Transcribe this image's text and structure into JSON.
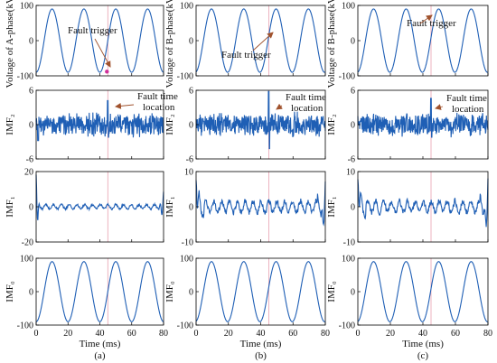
{
  "colors": {
    "signal": "#1f5fb5",
    "marker": "#e8a0b0",
    "arrow": "#a0522d",
    "fault_point": "#d0309a",
    "axis": "#000000"
  },
  "chart_data": [
    {
      "type": "line",
      "column": "a",
      "row": 0,
      "signal": "voltage",
      "ylabel": "Voltage of A-phase(kV)",
      "ylim": [
        -100,
        100
      ],
      "yticks": [
        -100,
        0,
        100
      ],
      "annotation": "Fault trigger",
      "fault_point": true
    },
    {
      "type": "line",
      "column": "a",
      "row": 1,
      "signal": "imf2",
      "ylabel": "IMF₂",
      "ylim": [
        -6,
        6
      ],
      "yticks": [
        -6,
        0,
        6
      ],
      "annotation": "Fault time location"
    },
    {
      "type": "line",
      "column": "a",
      "row": 2,
      "signal": "imf1",
      "ylabel": "IMF₁",
      "ylim": [
        -20,
        20
      ],
      "yticks": [
        -20,
        0,
        20
      ]
    },
    {
      "type": "line",
      "column": "a",
      "row": 3,
      "signal": "imf0",
      "ylabel": "IMF₀",
      "ylim": [
        -100,
        100
      ],
      "yticks": [
        -100,
        0,
        100
      ],
      "xlabel": "Time (ms)",
      "xticks": [
        0,
        20,
        40,
        60,
        80
      ],
      "caption": "(a)"
    },
    {
      "type": "line",
      "column": "b",
      "row": 0,
      "signal": "voltage",
      "ylabel": "Voltage of B-phase(kV)",
      "ylim": [
        -100,
        100
      ],
      "yticks": [
        -100,
        0,
        100
      ],
      "annotation": "Fault trigger"
    },
    {
      "type": "line",
      "column": "b",
      "row": 1,
      "signal": "imf2",
      "ylabel": "IMF₂",
      "ylim": [
        -6,
        6
      ],
      "yticks": [
        -6,
        0,
        6
      ],
      "annotation": "Fault time location"
    },
    {
      "type": "line",
      "column": "b",
      "row": 2,
      "signal": "imf1",
      "ylabel": "IMF₁",
      "ylim": [
        -10,
        10
      ],
      "yticks": [
        -10,
        0,
        10
      ]
    },
    {
      "type": "line",
      "column": "b",
      "row": 3,
      "signal": "imf0",
      "ylabel": "IMF₀",
      "ylim": [
        -100,
        100
      ],
      "yticks": [
        -100,
        0,
        100
      ],
      "xlabel": "Time (ms)",
      "xticks": [
        0,
        20,
        40,
        60,
        80
      ],
      "caption": "(b)"
    },
    {
      "type": "line",
      "column": "c",
      "row": 0,
      "signal": "voltage",
      "ylabel": "Voltage of B-phase(kV)",
      "ylim": [
        -100,
        100
      ],
      "yticks": [
        -100,
        0,
        100
      ],
      "annotation": "Fault trigger"
    },
    {
      "type": "line",
      "column": "c",
      "row": 1,
      "signal": "imf2",
      "ylabel": "IMF₂",
      "ylim": [
        -6,
        6
      ],
      "yticks": [
        -6,
        0,
        6
      ],
      "annotation": "Fault time location"
    },
    {
      "type": "line",
      "column": "c",
      "row": 2,
      "signal": "imf1",
      "ylabel": "IMF₁",
      "ylim": [
        -10,
        10
      ],
      "yticks": [
        -10,
        0,
        10
      ]
    },
    {
      "type": "line",
      "column": "c",
      "row": 3,
      "signal": "imf0",
      "ylabel": "IMF₀",
      "ylim": [
        -100,
        100
      ],
      "yticks": [
        -100,
        0,
        100
      ],
      "xlabel": "Time (ms)",
      "xticks": [
        0,
        20,
        40,
        60,
        80
      ],
      "caption": "(c)"
    }
  ],
  "x_range": [
    0,
    80
  ],
  "fault_time_ms": 45,
  "signal_frequency_hz": 50
}
